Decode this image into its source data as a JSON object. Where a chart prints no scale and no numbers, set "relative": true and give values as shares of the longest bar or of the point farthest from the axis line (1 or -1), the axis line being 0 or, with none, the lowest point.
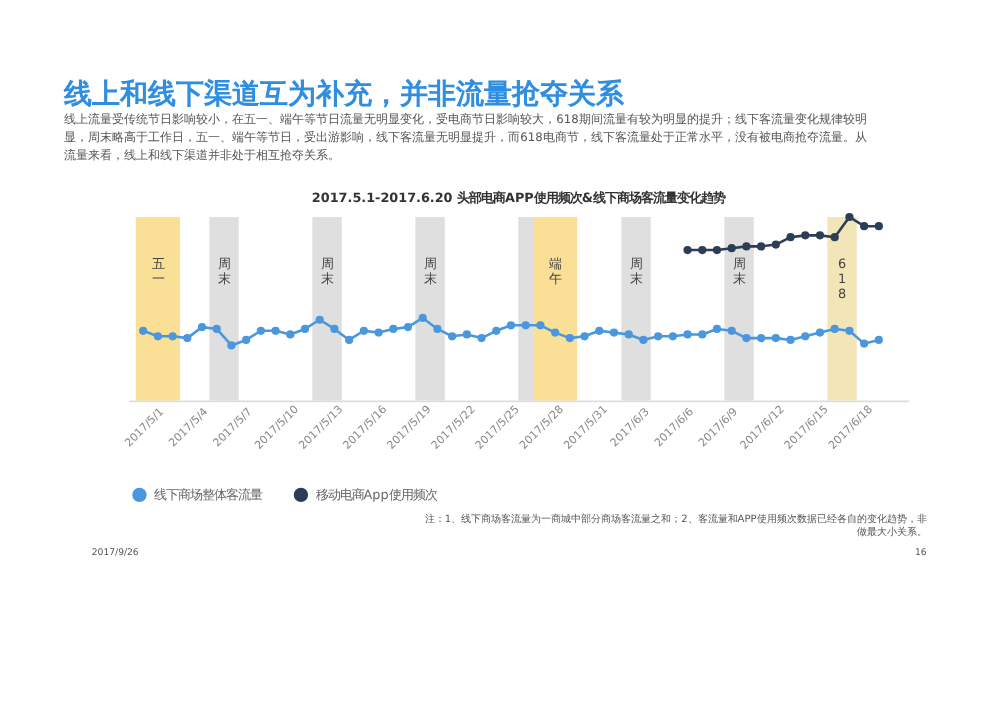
{
  "chart_data": {
    "type": "line",
    "relative": true,
    "marker": "circle",
    "line_style": "solid",
    "grid": false,
    "legend": "bottom",
    "title": "线上和线下渠道互为补充，并非流量抢夺关系",
    "subtitle": "线上流量受传统节日影响较小，在五一、端午等节日流量无明显变化，受电商节日影响较大，618期间流量有较为明显的提升；线下客流量变化规律较明显，周末略高于工作日，五一、端午等节日，受出游影响，线下客流量无明显提升，而618电商节，线下客流量处于正常水平，没有被电商抢夺流量。从流量来看，线上和线下渠道并非处于相互抢夺关系。",
    "annotations": [
      "2017.5.1-2017.6.20 头部电商APP使用频次&线下商场客流量变化趋势",
      "注：1、线下商场客流量为一商城中部分商场客流量之和；2、客流量和APP使用频次数据已经各自的变化趋势，非做最大小关系。",
      "2017/9/26",
      "16"
    ],
    "x": [
      "2017-05-01",
      "2017-05-02",
      "2017-05-03",
      "2017-05-04",
      "2017-05-05",
      "2017-05-06",
      "2017-05-07",
      "2017-05-08",
      "2017-05-09",
      "2017-05-10",
      "2017-05-11",
      "2017-05-12",
      "2017-05-13",
      "2017-05-14",
      "2017-05-15",
      "2017-05-16",
      "2017-05-17",
      "2017-05-18",
      "2017-05-19",
      "2017-05-20",
      "2017-05-21",
      "2017-05-22",
      "2017-05-23",
      "2017-05-24",
      "2017-05-25",
      "2017-05-26",
      "2017-05-27",
      "2017-05-28",
      "2017-05-29",
      "2017-05-30",
      "2017-05-31",
      "2017-06-01",
      "2017-06-02",
      "2017-06-03",
      "2017-06-04",
      "2017-06-05",
      "2017-06-06",
      "2017-06-07",
      "2017-06-08",
      "2017-06-09",
      "2017-06-10",
      "2017-06-11",
      "2017-06-12",
      "2017-06-13",
      "2017-06-14",
      "2017-06-15",
      "2017-06-16",
      "2017-06-17",
      "2017-06-18",
      "2017-06-19",
      "2017-06-20"
    ],
    "xlim": [
      "2017-04-30",
      "2017-06-22"
    ],
    "xticks": [
      {
        "value": "2017-05-01",
        "label": "2017/5/1"
      },
      {
        "value": "2017-05-04",
        "label": "2017/5/4"
      },
      {
        "value": "2017-05-07",
        "label": "2017/5/7"
      },
      {
        "value": "2017-05-10",
        "label": "2017/5/10"
      },
      {
        "value": "2017-05-13",
        "label": "2017/5/13"
      },
      {
        "value": "2017-05-16",
        "label": "2017/5/16"
      },
      {
        "value": "2017-05-19",
        "label": "2017/5/19"
      },
      {
        "value": "2017-05-22",
        "label": "2017/5/22"
      },
      {
        "value": "2017-05-25",
        "label": "2017/5/25"
      },
      {
        "value": "2017-05-28",
        "label": "2017/5/28"
      },
      {
        "value": "2017-05-31",
        "label": "2017/5/31"
      },
      {
        "value": "2017-06-03",
        "label": "2017/6/3"
      },
      {
        "value": "2017-06-06",
        "label": "2017/6/6"
      },
      {
        "value": "2017-06-09",
        "label": "2017/6/9"
      },
      {
        "value": "2017-06-12",
        "label": "2017/6/12"
      },
      {
        "value": "2017-06-15",
        "label": "2017/6/15"
      },
      {
        "value": "2017-06-18",
        "label": "2017/6/18"
      }
    ],
    "series": [
      {
        "name": "线下商场整体客流量",
        "color": "#4a97dd",
        "values": [
          0.38,
          0.35,
          0.35,
          0.34,
          0.4,
          0.39,
          0.3,
          0.33,
          0.38,
          0.38,
          0.36,
          0.39,
          0.44,
          0.39,
          0.33,
          0.38,
          0.37,
          0.39,
          0.4,
          0.45,
          0.39,
          0.35,
          0.36,
          0.34,
          0.38,
          0.41,
          0.41,
          0.41,
          0.37,
          0.34,
          0.35,
          0.38,
          0.37,
          0.36,
          0.33,
          0.35,
          0.35,
          0.36,
          0.36,
          0.39,
          0.38,
          0.34,
          0.34,
          0.34,
          0.33,
          0.35,
          0.37,
          0.39,
          0.38,
          0.31,
          0.33
        ]
      },
      {
        "name": "移动电商App使用频次",
        "color": "#2b3d57",
        "values": [
          null,
          null,
          null,
          null,
          null,
          null,
          null,
          null,
          null,
          null,
          null,
          null,
          null,
          null,
          null,
          null,
          null,
          null,
          null,
          null,
          null,
          null,
          null,
          null,
          null,
          null,
          null,
          null,
          null,
          null,
          null,
          null,
          null,
          null,
          null,
          null,
          null,
          0.82,
          0.82,
          0.82,
          0.83,
          0.84,
          0.84,
          0.85,
          0.89,
          0.9,
          0.9,
          0.89,
          1,
          0.95,
          0.95
        ]
      }
    ],
    "bands": [
      {
        "axis": "x",
        "from": "2017-04-30T12:00",
        "to": "2017-05-03T12:00",
        "label": "五一",
        "color": "#f9dc8c"
      },
      {
        "axis": "x",
        "from": "2017-05-05T12:00",
        "to": "2017-05-07T12:00",
        "label": "周末",
        "color": "#dcdcdc"
      },
      {
        "axis": "x",
        "from": "2017-05-12T12:00",
        "to": "2017-05-14T12:00",
        "label": "周末",
        "color": "#dcdcdc"
      },
      {
        "axis": "x",
        "from": "2017-05-19T12:00",
        "to": "2017-05-21T12:00",
        "label": "周末",
        "color": "#dcdcdc"
      },
      {
        "axis": "x",
        "from": "2017-05-26T12:00",
        "to": "2017-05-27T12:00",
        "label": null,
        "color": "#dcdcdc"
      },
      {
        "axis": "x",
        "from": "2017-05-27T12:00",
        "to": "2017-05-30T12:00",
        "label": "端午",
        "color": "#f9dc8c"
      },
      {
        "axis": "x",
        "from": "2017-06-02T12:00",
        "to": "2017-06-04T12:00",
        "label": "周末",
        "color": "#dcdcdc"
      },
      {
        "axis": "x",
        "from": "2017-06-09T12:00",
        "to": "2017-06-11T12:00",
        "label": "周末",
        "color": "#dcdcdc"
      },
      {
        "axis": "x",
        "from": "2017-06-16T12:00",
        "to": "2017-06-18T12:00",
        "label": "618",
        "color": "#f1e2b0"
      }
    ]
  }
}
